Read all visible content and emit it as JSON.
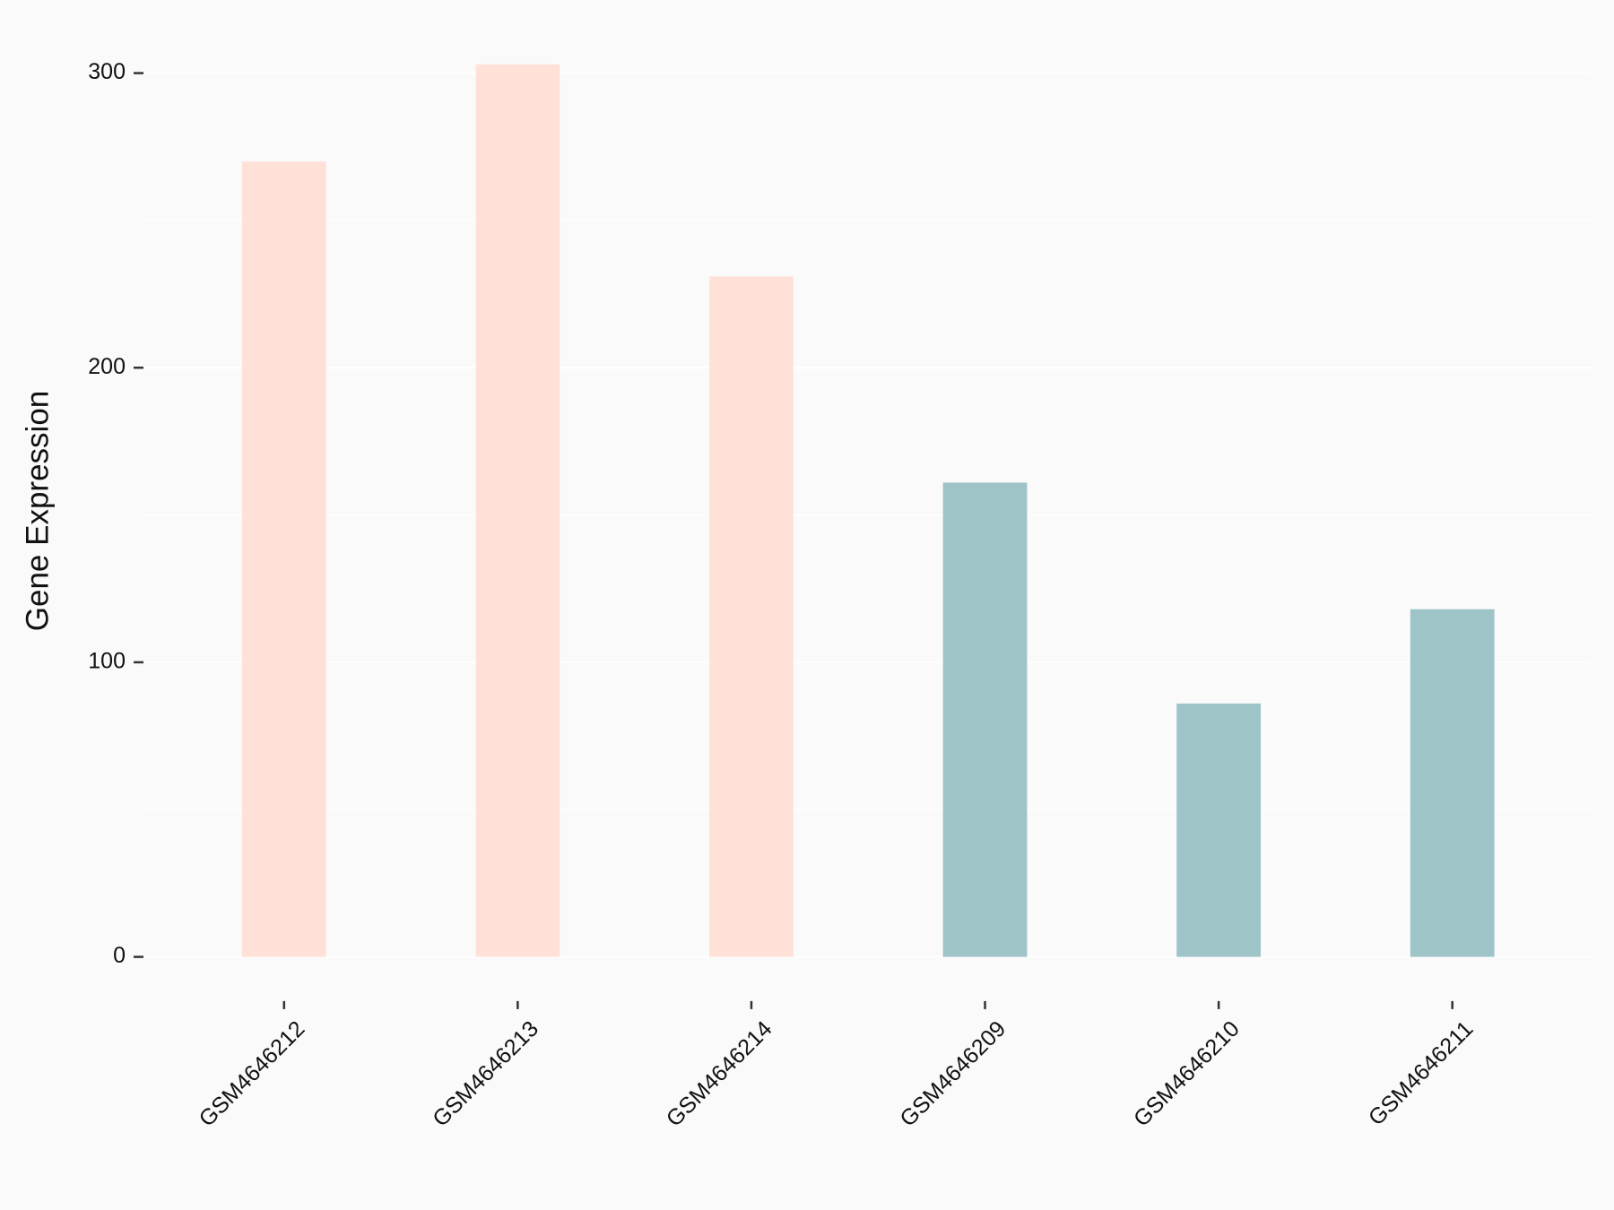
{
  "chart_data": {
    "type": "bar",
    "y_label": "Gene Expression",
    "categories": [
      "GSM4646212",
      "GSM4646213",
      "GSM4646214",
      "GSM4646209",
      "GSM4646210",
      "GSM4646211"
    ],
    "values": [
      270,
      303,
      231,
      161,
      86,
      118
    ],
    "colors": [
      "#ffe1d8",
      "#ffe1d8",
      "#ffe1d8",
      "#9ec4c8",
      "#9ec4c8",
      "#9ec4c8"
    ],
    "ylim": [
      -15,
      318
    ],
    "yticks": [
      0,
      100,
      200,
      300
    ],
    "minor_yticks": [
      50,
      150,
      250
    ],
    "grid": true
  }
}
